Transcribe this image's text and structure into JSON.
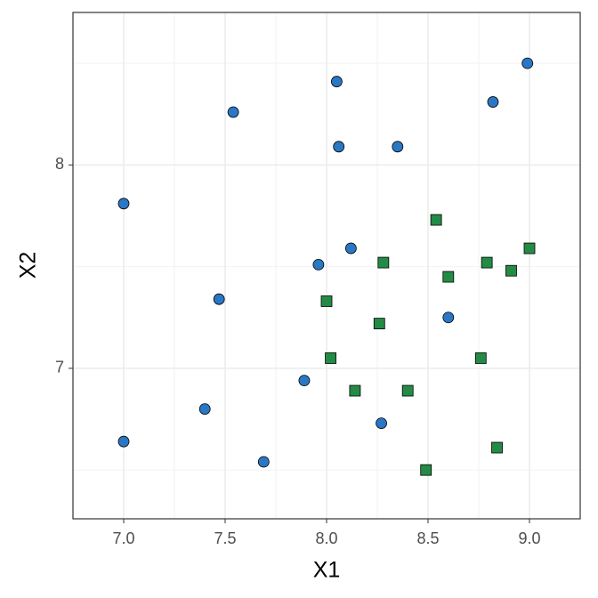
{
  "chart_data": {
    "type": "scatter",
    "xlabel": "X1",
    "ylabel": "X2",
    "xlim": [
      6.75,
      9.25
    ],
    "ylim": [
      6.26,
      8.75
    ],
    "xticks": [
      {
        "value": 7,
        "label": "7.0"
      },
      7.5,
      {
        "value": 8,
        "label": "8.0"
      },
      8.5,
      {
        "value": 9,
        "label": "9.0"
      }
    ],
    "yticks": [
      7,
      8
    ],
    "x_minor_ticks": [
      6.75,
      7.25,
      7.75,
      8.25,
      8.75,
      9.25
    ],
    "y_minor_ticks": [
      6.5,
      7.5,
      8.5
    ],
    "grid": true,
    "series": [
      {
        "color": "#2a77c4",
        "shape": "circle",
        "x": [
          7.0,
          7.54,
          8.05,
          8.99,
          8.82,
          8.06,
          8.35,
          8.12,
          7.96,
          7.47,
          8.6,
          7.89,
          7.4,
          7.0,
          7.69,
          8.27
        ],
        "values": [
          7.81,
          8.26,
          8.41,
          8.5,
          8.31,
          8.09,
          8.09,
          7.59,
          7.51,
          7.34,
          7.25,
          6.94,
          6.8,
          6.64,
          6.54,
          6.73
        ]
      },
      {
        "color": "#238b45",
        "shape": "square",
        "x": [
          8.54,
          9.0,
          8.79,
          8.91,
          8.28,
          8.6,
          8.0,
          8.26,
          8.02,
          8.76,
          8.14,
          8.4,
          8.84,
          8.49
        ],
        "values": [
          7.73,
          7.59,
          7.52,
          7.48,
          7.52,
          7.45,
          7.33,
          7.22,
          7.05,
          7.05,
          6.89,
          6.89,
          6.61,
          6.5
        ]
      }
    ]
  }
}
